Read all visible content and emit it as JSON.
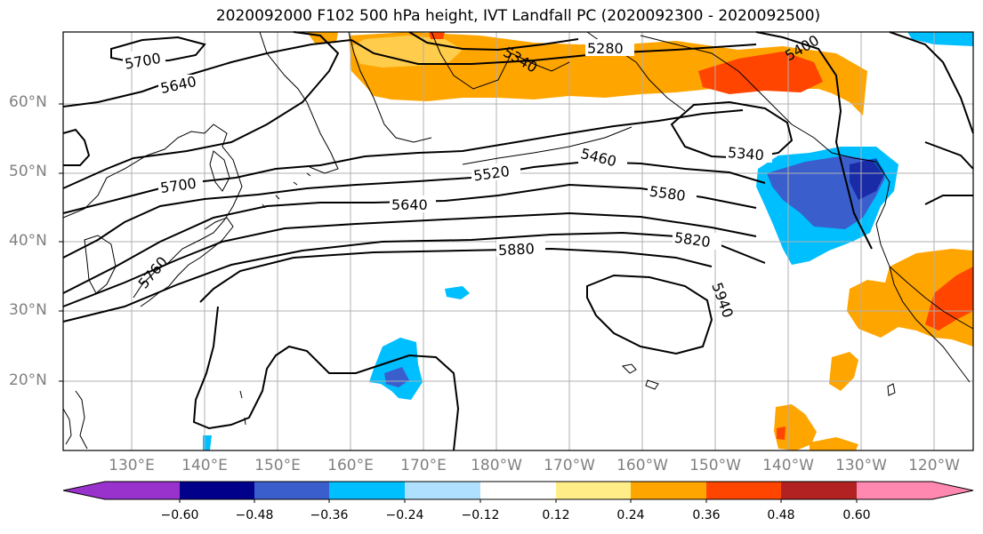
{
  "title": "2020092000 F102 500 hPa height, IVT Landfall PC (2020092300 - 2020092500)",
  "lat_labels": [
    "60°N",
    "50°N",
    "40°N",
    "30°N",
    "20°N"
  ],
  "lon_labels": [
    "130°E",
    "140°E",
    "150°E",
    "160°E",
    "170°E",
    "180°W",
    "170°W",
    "160°W",
    "150°W",
    "140°W",
    "130°W",
    "120°W"
  ],
  "contour_labels": [
    "5700",
    "5640",
    "5700",
    "5760",
    "5520",
    "5640",
    "5880",
    "5460",
    "5580",
    "5820",
    "5280",
    "5340",
    "5940",
    "5340",
    "5400"
  ],
  "colorbar": {
    "ticks": [
      "−0.60",
      "−0.48",
      "−0.36",
      "−0.24",
      "−0.12",
      "0.12",
      "0.24",
      "0.36",
      "0.48",
      "0.60"
    ],
    "colors": [
      "#9932cc",
      "#00008b",
      "#3a5fcd",
      "#00bfff",
      "#b0e0ff",
      "#ffffff",
      "#ffee88",
      "#ffa500",
      "#ff4500",
      "#b22222",
      "#ff88b0"
    ]
  },
  "colors": {
    "land_outline": "#000000",
    "grid": "#b0b0b0",
    "contour": "#000000"
  }
}
